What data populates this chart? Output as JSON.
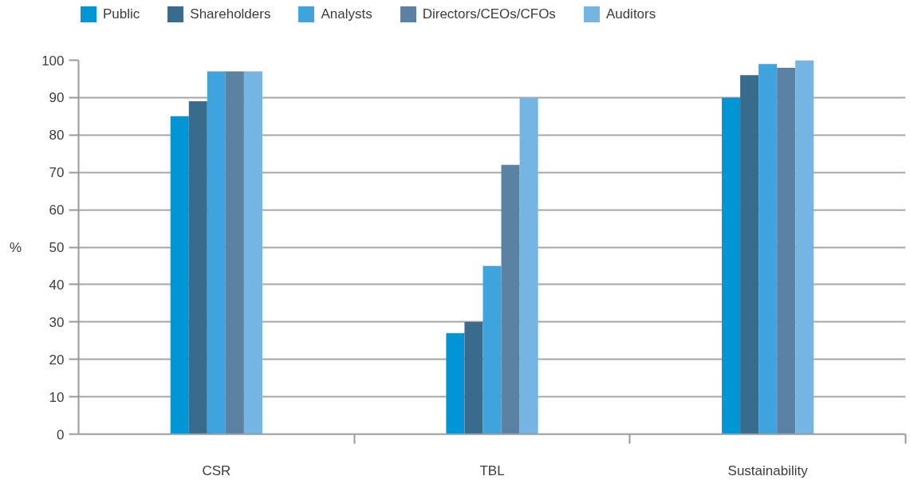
{
  "chart_data": {
    "type": "bar",
    "categories": [
      "CSR",
      "TBL",
      "Sustainability"
    ],
    "ylabel": "%",
    "ylim": [
      0,
      100
    ],
    "yticks": [
      0,
      10,
      20,
      30,
      40,
      50,
      60,
      70,
      80,
      90,
      100
    ],
    "grid": "y",
    "legend": "top",
    "series": [
      {
        "name": "Public",
        "color": "#0096d6",
        "values": [
          85,
          27,
          90
        ]
      },
      {
        "name": "Shareholders",
        "color": "#386b8c",
        "values": [
          89,
          30,
          96
        ]
      },
      {
        "name": "Analysts",
        "color": "#3fa4dd",
        "values": [
          97,
          45,
          99
        ]
      },
      {
        "name": "Directors/CEOs/CFOs",
        "color": "#5b82a3",
        "values": [
          97,
          72,
          98
        ]
      },
      {
        "name": "Auditors",
        "color": "#74b5e3",
        "values": [
          97,
          90,
          100
        ]
      }
    ]
  }
}
